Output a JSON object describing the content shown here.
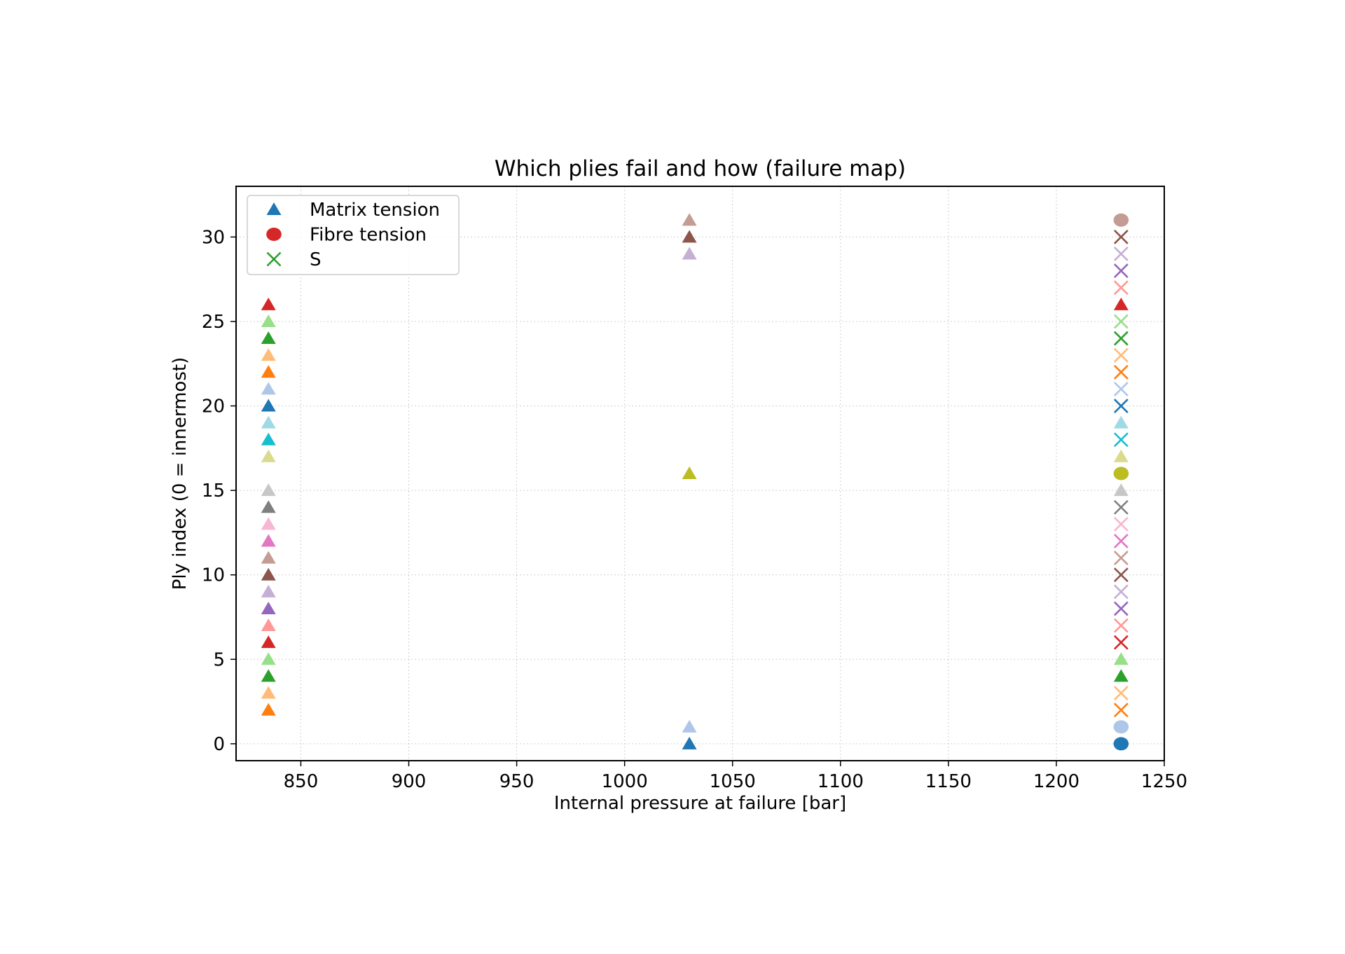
{
  "chart_data": {
    "type": "scatter",
    "title": "Which plies fail and how (failure map)",
    "xlabel": "Internal pressure at failure [bar]",
    "ylabel": "Ply index (0 = innermost)",
    "xlim": [
      820,
      1250
    ],
    "ylim": [
      -1,
      33
    ],
    "xticks": [
      850,
      900,
      950,
      1000,
      1050,
      1100,
      1150,
      1200,
      1250
    ],
    "yticks": [
      0,
      5,
      10,
      15,
      20,
      25,
      30
    ],
    "grid": true,
    "legend_position": "top-left",
    "legend": [
      {
        "label": "Matrix tension",
        "marker": "triangle",
        "color": "#1f77b4"
      },
      {
        "label": "Fibre tension",
        "marker": "circle",
        "color": "#d62728"
      },
      {
        "label": "S",
        "marker": "x",
        "color": "#2ca02c"
      }
    ],
    "palette": [
      "#1f77b4",
      "#aec7e8",
      "#ff7f0e",
      "#ffbb78",
      "#2ca02c",
      "#98df8a",
      "#d62728",
      "#ff9896",
      "#9467bd",
      "#c5b0d5",
      "#8c564b",
      "#c49c94",
      "#e377c2",
      "#f7b6d2",
      "#7f7f7f",
      "#c7c7c7",
      "#bcbd22",
      "#dbdb8d",
      "#17becf",
      "#9edae5"
    ],
    "groups": [
      {
        "x": 835,
        "points": [
          {
            "ply": 2,
            "mode": "Matrix tension"
          },
          {
            "ply": 3,
            "mode": "Matrix tension"
          },
          {
            "ply": 4,
            "mode": "Matrix tension"
          },
          {
            "ply": 5,
            "mode": "Matrix tension"
          },
          {
            "ply": 6,
            "mode": "Matrix tension"
          },
          {
            "ply": 7,
            "mode": "Matrix tension"
          },
          {
            "ply": 8,
            "mode": "Matrix tension"
          },
          {
            "ply": 9,
            "mode": "Matrix tension"
          },
          {
            "ply": 10,
            "mode": "Matrix tension"
          },
          {
            "ply": 11,
            "mode": "Matrix tension"
          },
          {
            "ply": 12,
            "mode": "Matrix tension"
          },
          {
            "ply": 13,
            "mode": "Matrix tension"
          },
          {
            "ply": 14,
            "mode": "Matrix tension"
          },
          {
            "ply": 15,
            "mode": "Matrix tension"
          },
          {
            "ply": 17,
            "mode": "Matrix tension"
          },
          {
            "ply": 18,
            "mode": "Matrix tension"
          },
          {
            "ply": 19,
            "mode": "Matrix tension"
          },
          {
            "ply": 20,
            "mode": "Matrix tension"
          },
          {
            "ply": 21,
            "mode": "Matrix tension"
          },
          {
            "ply": 22,
            "mode": "Matrix tension"
          },
          {
            "ply": 23,
            "mode": "Matrix tension"
          },
          {
            "ply": 24,
            "mode": "Matrix tension"
          },
          {
            "ply": 25,
            "mode": "Matrix tension"
          },
          {
            "ply": 26,
            "mode": "Matrix tension"
          }
        ]
      },
      {
        "x": 1030,
        "points": [
          {
            "ply": 0,
            "mode": "Matrix tension"
          },
          {
            "ply": 1,
            "mode": "Matrix tension"
          },
          {
            "ply": 16,
            "mode": "Matrix tension"
          },
          {
            "ply": 29,
            "mode": "Matrix tension"
          },
          {
            "ply": 30,
            "mode": "Matrix tension"
          },
          {
            "ply": 31,
            "mode": "Matrix tension"
          }
        ]
      },
      {
        "x": 1230,
        "points": [
          {
            "ply": 0,
            "mode": "Fibre tension"
          },
          {
            "ply": 1,
            "mode": "Fibre tension"
          },
          {
            "ply": 2,
            "mode": "S"
          },
          {
            "ply": 3,
            "mode": "S"
          },
          {
            "ply": 4,
            "mode": "Matrix tension"
          },
          {
            "ply": 5,
            "mode": "Matrix tension"
          },
          {
            "ply": 6,
            "mode": "S"
          },
          {
            "ply": 7,
            "mode": "S"
          },
          {
            "ply": 8,
            "mode": "S"
          },
          {
            "ply": 9,
            "mode": "S"
          },
          {
            "ply": 10,
            "mode": "S"
          },
          {
            "ply": 11,
            "mode": "S"
          },
          {
            "ply": 12,
            "mode": "S"
          },
          {
            "ply": 13,
            "mode": "S"
          },
          {
            "ply": 14,
            "mode": "S"
          },
          {
            "ply": 15,
            "mode": "Matrix tension"
          },
          {
            "ply": 16,
            "mode": "Fibre tension"
          },
          {
            "ply": 17,
            "mode": "Matrix tension"
          },
          {
            "ply": 18,
            "mode": "S"
          },
          {
            "ply": 19,
            "mode": "Matrix tension"
          },
          {
            "ply": 20,
            "mode": "S"
          },
          {
            "ply": 21,
            "mode": "S"
          },
          {
            "ply": 22,
            "mode": "S"
          },
          {
            "ply": 23,
            "mode": "S"
          },
          {
            "ply": 24,
            "mode": "S"
          },
          {
            "ply": 25,
            "mode": "S"
          },
          {
            "ply": 26,
            "mode": "Matrix tension"
          },
          {
            "ply": 27,
            "mode": "S"
          },
          {
            "ply": 28,
            "mode": "S"
          },
          {
            "ply": 29,
            "mode": "S"
          },
          {
            "ply": 30,
            "mode": "S"
          },
          {
            "ply": 31,
            "mode": "Fibre tension"
          }
        ]
      }
    ]
  }
}
